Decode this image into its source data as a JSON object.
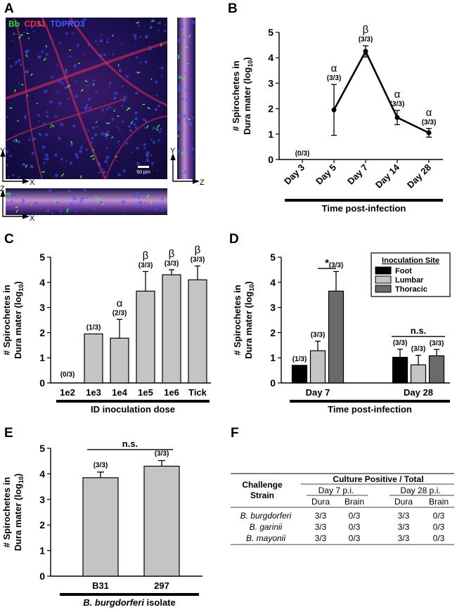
{
  "panels": {
    "A": "A",
    "B": "B",
    "C": "C",
    "D": "D",
    "E": "E",
    "F": "F"
  },
  "micrograph": {
    "stain_labels": [
      "Bb",
      "CD31",
      "TOPRO3"
    ],
    "stain_colors": [
      "#33e033",
      "#ff3030",
      "#4a5cff"
    ],
    "scale_bar": "50 μm",
    "axes_main": [
      "Y",
      "X"
    ],
    "axes_side": [
      "Y",
      "Z"
    ],
    "axes_bottom": [
      "Z",
      "X"
    ]
  },
  "chart_data": [
    {
      "id": "B",
      "type": "line",
      "ylabel": "# Spirochetes in Dura mater (log10)",
      "ylabel_line1": "# Spirochetes in",
      "ylabel_line2": "Dura mater (log",
      "ylabel_sub": "10",
      "xlabel": "Time post-infection",
      "ylim": [
        0,
        5
      ],
      "yticks": [
        "0",
        "1",
        "2",
        "3",
        "4",
        "5"
      ],
      "categories": [
        "Day 3",
        "Day 5",
        "Day 7",
        "Day 14",
        "Day 28"
      ],
      "values": [
        null,
        1.95,
        4.25,
        1.65,
        1.05
      ],
      "errors": [
        null,
        1.0,
        0.22,
        0.28,
        0.17
      ],
      "counts": [
        "(0/3)",
        "(3/3)",
        "(3/3)",
        "(3/3)",
        "(3/3)"
      ],
      "sig": [
        "",
        "α",
        "β",
        "α",
        "α"
      ]
    },
    {
      "id": "C",
      "type": "bar",
      "ylabel": "# Spirochetes in Dura mater (log10)",
      "xlabel": "ID inoculation dose",
      "ylim": [
        0,
        5
      ],
      "yticks": [
        "0",
        "1",
        "2",
        "3",
        "4",
        "5"
      ],
      "categories": [
        "1e2",
        "1e3",
        "1e4",
        "1e5",
        "1e6",
        "Tick"
      ],
      "values": [
        0,
        1.95,
        1.78,
        3.65,
        4.3,
        4.1
      ],
      "errors": [
        0,
        0,
        0.75,
        0.78,
        0.2,
        0.55
      ],
      "counts": [
        "(0/3)",
        "(1/3)",
        "(2/3)",
        "(3/3)",
        "(3/3)",
        "(3/3)"
      ],
      "sig": [
        "",
        "",
        "α",
        "β",
        "β",
        "β"
      ]
    },
    {
      "id": "D",
      "type": "bar",
      "ylabel": "# Spirochetes in Dura mater (log10)",
      "xlabel": "Time post-infection",
      "ylim": [
        0,
        5
      ],
      "yticks": [
        "0",
        "1",
        "2",
        "3",
        "4",
        "5"
      ],
      "categories": [
        "Day 7",
        "Day 28"
      ],
      "legend_title": "Inoculation Site",
      "series": [
        {
          "name": "Foot",
          "color": "#000000",
          "values": [
            0.7,
            1.02
          ],
          "errors": [
            0,
            0.32
          ],
          "counts": [
            "(1/3)",
            "(3/3)"
          ]
        },
        {
          "name": "Lumbar",
          "color": "#c4c4c4",
          "values": [
            1.28,
            0.72
          ],
          "errors": [
            0.38,
            0.38
          ],
          "counts": [
            "(3/3)",
            "(3/3)"
          ]
        },
        {
          "name": "Thoracic",
          "color": "#6a6a6a",
          "values": [
            3.65,
            1.08
          ],
          "errors": [
            0.78,
            0.25
          ],
          "counts": [
            "(3/3)",
            "(3/3)"
          ]
        }
      ],
      "annotations": [
        "*",
        "n.s."
      ]
    },
    {
      "id": "E",
      "type": "bar",
      "ylabel": "# Spirochetes in Dura mater (log10)",
      "xlabel": "B. burgdorferi isolate",
      "ylim": [
        0,
        5
      ],
      "yticks": [
        "0",
        "1",
        "2",
        "3",
        "4",
        "5"
      ],
      "categories": [
        "B31",
        "297"
      ],
      "values": [
        3.85,
        4.3
      ],
      "errors": [
        0.22,
        0.22
      ],
      "counts": [
        "(3/3)",
        "(3/3)"
      ],
      "annotation": "n.s."
    }
  ],
  "table": {
    "row_header": [
      "Challenge",
      "Strain"
    ],
    "group_header": "Culture Positive / Total",
    "timepoints": [
      "Day 7 p.i.",
      "Day 28 p.i."
    ],
    "tissues": [
      "Dura",
      "Brain",
      "Dura",
      "Brain"
    ],
    "rows": [
      {
        "strain": "B. burgdorferi",
        "cells": [
          "3/3",
          "0/3",
          "3/3",
          "0/3"
        ]
      },
      {
        "strain": "B. garinii",
        "cells": [
          "3/3",
          "0/3",
          "3/3",
          "0/3"
        ]
      },
      {
        "strain": "B. mayonii",
        "cells": [
          "3/3",
          "0/3",
          "3/3",
          "0/3"
        ]
      }
    ]
  }
}
